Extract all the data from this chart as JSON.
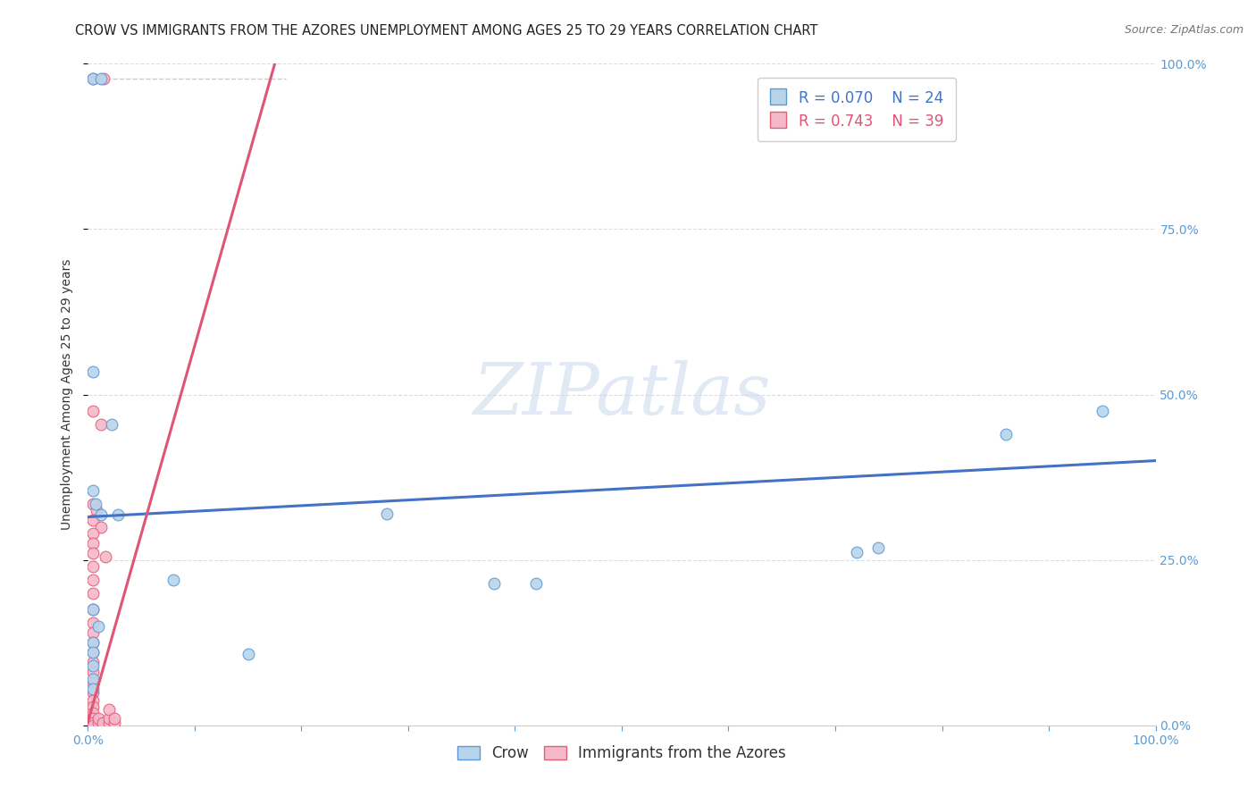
{
  "title": "CROW VS IMMIGRANTS FROM THE AZORES UNEMPLOYMENT AMONG AGES 25 TO 29 YEARS CORRELATION CHART",
  "source": "Source: ZipAtlas.com",
  "ylabel": "Unemployment Among Ages 25 to 29 years",
  "xlim": [
    0,
    1
  ],
  "ylim": [
    0,
    1
  ],
  "xticks": [
    0.0,
    0.1,
    0.2,
    0.3,
    0.4,
    0.5,
    0.6,
    0.7,
    0.8,
    0.9,
    1.0
  ],
  "yticks": [
    0.0,
    0.25,
    0.5,
    0.75,
    1.0
  ],
  "crow_color": "#b8d4ea",
  "azores_color": "#f5b8cb",
  "crow_edge_color": "#5b9bd5",
  "azores_edge_color": "#e0607a",
  "trend_crow_color": "#4472c4",
  "trend_azores_color": "#e05575",
  "legend_R_crow": "R = 0.070",
  "legend_N_crow": "N = 24",
  "legend_R_azores": "R = 0.743",
  "legend_N_azores": "N = 39",
  "watermark": "ZIPatlas",
  "crow_scatter": [
    [
      0.005,
      0.978
    ],
    [
      0.012,
      0.978
    ],
    [
      0.005,
      0.535
    ],
    [
      0.022,
      0.455
    ],
    [
      0.005,
      0.355
    ],
    [
      0.007,
      0.335
    ],
    [
      0.012,
      0.318
    ],
    [
      0.028,
      0.318
    ],
    [
      0.005,
      0.175
    ],
    [
      0.01,
      0.15
    ],
    [
      0.005,
      0.125
    ],
    [
      0.005,
      0.11
    ],
    [
      0.005,
      0.09
    ],
    [
      0.005,
      0.07
    ],
    [
      0.005,
      0.055
    ],
    [
      0.08,
      0.22
    ],
    [
      0.15,
      0.108
    ],
    [
      0.28,
      0.32
    ],
    [
      0.38,
      0.215
    ],
    [
      0.42,
      0.215
    ],
    [
      0.72,
      0.262
    ],
    [
      0.74,
      0.268
    ],
    [
      0.86,
      0.44
    ],
    [
      0.95,
      0.475
    ]
  ],
  "azores_scatter": [
    [
      0.005,
      0.978
    ],
    [
      0.015,
      0.978
    ],
    [
      0.005,
      0.475
    ],
    [
      0.012,
      0.455
    ],
    [
      0.005,
      0.335
    ],
    [
      0.008,
      0.325
    ],
    [
      0.005,
      0.31
    ],
    [
      0.012,
      0.3
    ],
    [
      0.005,
      0.29
    ],
    [
      0.005,
      0.275
    ],
    [
      0.005,
      0.26
    ],
    [
      0.016,
      0.255
    ],
    [
      0.005,
      0.24
    ],
    [
      0.005,
      0.22
    ],
    [
      0.005,
      0.2
    ],
    [
      0.005,
      0.175
    ],
    [
      0.005,
      0.155
    ],
    [
      0.005,
      0.14
    ],
    [
      0.005,
      0.125
    ],
    [
      0.005,
      0.11
    ],
    [
      0.005,
      0.095
    ],
    [
      0.005,
      0.08
    ],
    [
      0.005,
      0.065
    ],
    [
      0.005,
      0.05
    ],
    [
      0.005,
      0.038
    ],
    [
      0.005,
      0.028
    ],
    [
      0.005,
      0.018
    ],
    [
      0.005,
      0.01
    ],
    [
      0.005,
      0.004
    ],
    [
      0.005,
      0.0
    ],
    [
      0.01,
      0.004
    ],
    [
      0.01,
      0.01
    ],
    [
      0.014,
      0.0
    ],
    [
      0.014,
      0.004
    ],
    [
      0.02,
      0.004
    ],
    [
      0.02,
      0.01
    ],
    [
      0.02,
      0.024
    ],
    [
      0.025,
      0.004
    ],
    [
      0.025,
      0.01
    ]
  ],
  "crow_trend_x": [
    0.0,
    1.0
  ],
  "crow_trend_y": [
    0.315,
    0.4
  ],
  "azores_trend_x": [
    0.0,
    0.175
  ],
  "azores_trend_y": [
    0.005,
    1.0
  ],
  "ref_line_x": [
    0.005,
    0.185
  ],
  "ref_line_y": [
    0.978,
    0.978
  ],
  "grid_color": "#dddddd",
  "background_color": "#ffffff",
  "title_fontsize": 10.5,
  "axis_label_fontsize": 10,
  "tick_fontsize": 10,
  "legend_fontsize": 12,
  "marker_size": 85
}
